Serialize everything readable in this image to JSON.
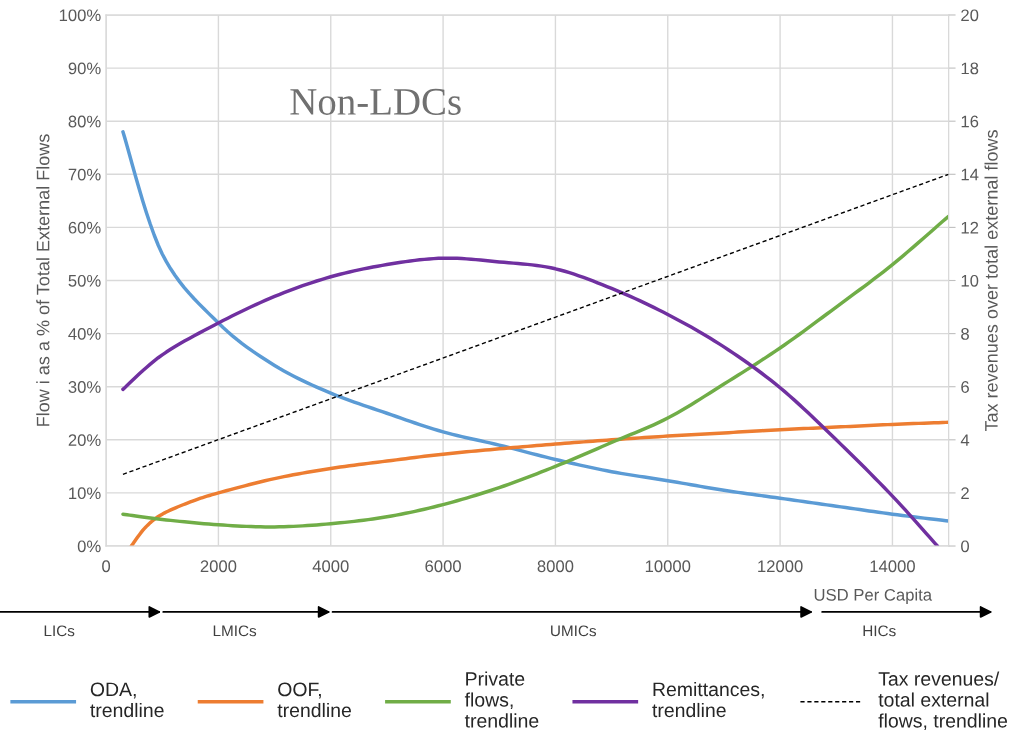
{
  "chart_data": {
    "type": "line",
    "title": "Non-LDCs",
    "xlabel": "USD Per Capita",
    "ylabel": "Flow i as a % of Total External Flows",
    "y2label": "Tax revenues over total external flows",
    "annotations": [
      "LICs",
      "LMICs",
      "UMICs",
      "HICs"
    ],
    "xlim": [
      0,
      15000
    ],
    "xticks": [
      0,
      2000,
      4000,
      6000,
      8000,
      10000,
      12000,
      14000
    ],
    "ylim": [
      0,
      100
    ],
    "yticks": [
      {
        "value": 0,
        "label": "0%"
      },
      {
        "value": 10,
        "label": "10%"
      },
      {
        "value": 20,
        "label": "20%"
      },
      {
        "value": 30,
        "label": "30%"
      },
      {
        "value": 40,
        "label": "40%"
      },
      {
        "value": 50,
        "label": "50%"
      },
      {
        "value": 60,
        "label": "60%"
      },
      {
        "value": 70,
        "label": "70%"
      },
      {
        "value": 80,
        "label": "80%"
      },
      {
        "value": 90,
        "label": "90%"
      },
      {
        "value": 100,
        "label": "100%"
      }
    ],
    "y2lim": [
      0,
      20
    ],
    "y2ticks": [
      0,
      2,
      4,
      6,
      8,
      10,
      12,
      14,
      16,
      18,
      20
    ],
    "grid": true,
    "legend": "bottom",
    "marker": "none",
    "series": [
      {
        "name": "ODA,\ntrendline",
        "color": "#5b9bd5",
        "x": [
          300,
          1000,
          2000,
          3000,
          4000,
          5000,
          6000,
          7000,
          8000,
          9000,
          10000,
          11000,
          12000,
          13000,
          14000,
          15000
        ],
        "values": [
          78,
          55,
          42,
          34,
          28.8,
          25,
          21.5,
          19,
          16.3,
          14,
          12.3,
          10.5,
          9,
          7.5,
          6,
          4.7
        ]
      },
      {
        "name": "OOF,\ntrendline",
        "color": "#ed7d31",
        "x": [
          450,
          700,
          1000,
          1500,
          2000,
          3000,
          4000,
          5000,
          6000,
          7000,
          8000,
          9000,
          10000,
          11000,
          12000,
          13000,
          14000,
          15000
        ],
        "values": [
          0,
          3.5,
          6,
          8.3,
          10,
          12.7,
          14.6,
          16,
          17.3,
          18.3,
          19.2,
          20,
          20.7,
          21.3,
          21.9,
          22.4,
          22.9,
          23.3
        ]
      },
      {
        "name": "Private\nflows,\ntrendline",
        "color": "#70ad47",
        "x": [
          300,
          1000,
          2000,
          3000,
          4000,
          5000,
          6000,
          7000,
          8000,
          9000,
          10000,
          11000,
          12000,
          13000,
          14000,
          15000
        ],
        "values": [
          6,
          5,
          4,
          3.6,
          4.2,
          5.5,
          7.8,
          11,
          15,
          19.5,
          24.1,
          30.5,
          37.3,
          45,
          53,
          62.1
        ]
      },
      {
        "name": "Remittances,\ntrendline",
        "color": "#7030a0",
        "x": [
          300,
          1000,
          2000,
          3000,
          4000,
          5000,
          6000,
          7000,
          8000,
          9000,
          10000,
          11000,
          12000,
          13000,
          14000,
          14800
        ],
        "values": [
          29.5,
          36,
          42,
          47,
          50.7,
          53,
          54.2,
          53.5,
          52.2,
          48.5,
          43.6,
          37.5,
          29.8,
          20,
          9.4,
          0
        ]
      },
      {
        "name": "Tax revenues/\ntotal external\nflows, trendline",
        "color": "#000000",
        "axis": "y2",
        "line_style": "dashed",
        "x": [
          300,
          15000
        ],
        "values": [
          2.7,
          14
        ]
      }
    ]
  }
}
